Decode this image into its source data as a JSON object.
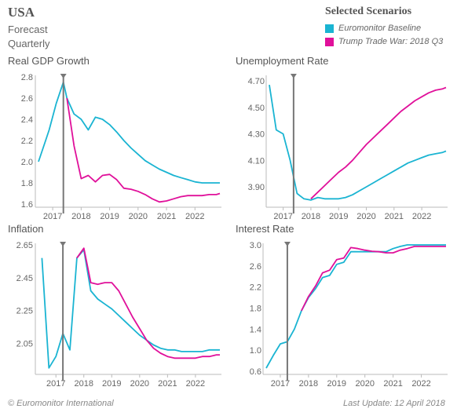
{
  "header": {
    "title": "USA",
    "subtitle1": "Forecast",
    "subtitle2": "Quarterly"
  },
  "legend": {
    "heading": "Selected Scenarios",
    "items": [
      {
        "label": "Euromonitor Baseline",
        "color": "#1ab4d2"
      },
      {
        "label": "Trump Trade War: 2018 Q3",
        "color": "#e0109a"
      }
    ]
  },
  "footer": {
    "copyright": "© Euromonitor International",
    "updated": "Last Update: 12 April 2018"
  },
  "colors": {
    "baseline": "#1ab4d2",
    "scenario": "#e0109a",
    "marker": "#777777",
    "axis": "#bbbbbb"
  },
  "chart_data": [
    {
      "type": "line",
      "title": "Real GDP Growth",
      "x_ticks": [
        "2017",
        "2018",
        "2019",
        "2020",
        "2021",
        "2022"
      ],
      "x_range": [
        2016.625,
        2023.0
      ],
      "ylim": [
        1.6,
        2.8
      ],
      "y_ticks": [
        "2.8",
        "2.6",
        "2.4",
        "2.2",
        "2.0",
        "1.8",
        "1.6"
      ],
      "marker_x": 2017.5,
      "series": [
        {
          "name": "Euromonitor Baseline",
          "x": [
            2016.625,
            2016.875,
            2017.0,
            2017.25,
            2017.5,
            2017.625,
            2017.875,
            2018.125,
            2018.375,
            2018.625,
            2018.875,
            2019.125,
            2019.375,
            2019.625,
            2019.875,
            2020.125,
            2020.375,
            2020.625,
            2020.875,
            2021.125,
            2021.375,
            2021.625,
            2021.875,
            2022.125,
            2022.375,
            2022.625,
            2022.875,
            2023.0
          ],
          "y": [
            2.0,
            2.2,
            2.3,
            2.55,
            2.75,
            2.6,
            2.45,
            2.4,
            2.3,
            2.42,
            2.4,
            2.35,
            2.28,
            2.2,
            2.13,
            2.07,
            2.01,
            1.97,
            1.93,
            1.9,
            1.87,
            1.85,
            1.83,
            1.81,
            1.8,
            1.8,
            1.8,
            1.8
          ]
        },
        {
          "name": "Trump Trade War: 2018 Q3",
          "x": [
            2017.625,
            2017.875,
            2018.125,
            2018.375,
            2018.625,
            2018.875,
            2019.125,
            2019.375,
            2019.625,
            2019.875,
            2020.125,
            2020.375,
            2020.625,
            2020.875,
            2021.125,
            2021.375,
            2021.625,
            2021.875,
            2022.125,
            2022.375,
            2022.625,
            2022.875,
            2023.0
          ],
          "y": [
            2.6,
            2.15,
            1.84,
            1.87,
            1.81,
            1.87,
            1.88,
            1.83,
            1.75,
            1.74,
            1.72,
            1.69,
            1.65,
            1.62,
            1.63,
            1.65,
            1.67,
            1.68,
            1.68,
            1.68,
            1.69,
            1.69,
            1.7
          ]
        }
      ]
    },
    {
      "type": "line",
      "title": "Unemployment Rate",
      "x_ticks": [
        "2017",
        "2018",
        "2019",
        "2020",
        "2021",
        "2022"
      ],
      "x_range": [
        2016.625,
        2023.0
      ],
      "ylim": [
        3.77,
        4.73
      ],
      "y_ticks": [
        "4.70",
        "4.50",
        "4.30",
        "4.10",
        "3.90"
      ],
      "marker_x": 2017.5,
      "series": [
        {
          "name": "Euromonitor Baseline",
          "x": [
            2016.625,
            2016.875,
            2017.125,
            2017.375,
            2017.625,
            2017.875,
            2018.125,
            2018.375,
            2018.625,
            2018.875,
            2019.125,
            2019.375,
            2019.625,
            2019.875,
            2020.125,
            2020.375,
            2020.625,
            2020.875,
            2021.125,
            2021.375,
            2021.625,
            2021.875,
            2022.125,
            2022.375,
            2022.625,
            2022.875,
            2023.0
          ],
          "y": [
            4.67,
            4.33,
            4.3,
            4.1,
            3.85,
            3.81,
            3.8,
            3.82,
            3.81,
            3.81,
            3.81,
            3.82,
            3.84,
            3.87,
            3.9,
            3.93,
            3.96,
            3.99,
            4.02,
            4.05,
            4.08,
            4.1,
            4.12,
            4.14,
            4.15,
            4.16,
            4.17
          ]
        },
        {
          "name": "Trump Trade War: 2018 Q3",
          "x": [
            2018.125,
            2018.375,
            2018.625,
            2018.875,
            2019.125,
            2019.375,
            2019.625,
            2019.875,
            2020.125,
            2020.375,
            2020.625,
            2020.875,
            2021.125,
            2021.375,
            2021.625,
            2021.875,
            2022.125,
            2022.375,
            2022.625,
            2022.875,
            2023.0
          ],
          "y": [
            3.81,
            3.86,
            3.91,
            3.96,
            4.01,
            4.05,
            4.1,
            4.16,
            4.22,
            4.27,
            4.32,
            4.37,
            4.42,
            4.47,
            4.51,
            4.55,
            4.58,
            4.61,
            4.63,
            4.64,
            4.65
          ]
        }
      ]
    },
    {
      "type": "line",
      "title": "Inflation",
      "x_ticks": [
        "2017",
        "2018",
        "2019",
        "2020",
        "2021",
        "2022"
      ],
      "x_range": [
        2016.5,
        2023.0
      ],
      "ylim": [
        1.88,
        2.65
      ],
      "y_ticks": [
        "2.65",
        "2.45",
        "2.25",
        "2.05"
      ],
      "marker_x": 2017.375,
      "series": [
        {
          "name": "Euromonitor Baseline",
          "x": [
            2016.625,
            2016.875,
            2017.125,
            2017.375,
            2017.625,
            2017.875,
            2018.125,
            2018.375,
            2018.625,
            2018.875,
            2019.125,
            2019.375,
            2019.625,
            2019.875,
            2020.125,
            2020.375,
            2020.625,
            2020.875,
            2021.125,
            2021.375,
            2021.625,
            2021.875,
            2022.125,
            2022.375,
            2022.625,
            2022.875,
            2023.0
          ],
          "y": [
            2.57,
            1.9,
            1.97,
            2.11,
            2.01,
            2.57,
            2.62,
            2.37,
            2.32,
            2.29,
            2.26,
            2.22,
            2.18,
            2.14,
            2.1,
            2.07,
            2.04,
            2.02,
            2.01,
            2.01,
            2.0,
            2.0,
            2.0,
            2.0,
            2.01,
            2.01,
            2.01
          ]
        },
        {
          "name": "Trump Trade War: 2018 Q3",
          "x": [
            2017.875,
            2018.125,
            2018.375,
            2018.625,
            2018.875,
            2019.125,
            2019.375,
            2019.625,
            2019.875,
            2020.125,
            2020.375,
            2020.625,
            2020.875,
            2021.125,
            2021.375,
            2021.625,
            2021.875,
            2022.125,
            2022.375,
            2022.625,
            2022.875,
            2023.0
          ],
          "y": [
            2.57,
            2.63,
            2.42,
            2.41,
            2.42,
            2.42,
            2.37,
            2.29,
            2.21,
            2.14,
            2.07,
            2.02,
            1.99,
            1.97,
            1.96,
            1.96,
            1.96,
            1.96,
            1.97,
            1.97,
            1.98,
            1.98
          ]
        }
      ]
    },
    {
      "type": "line",
      "title": "Interest Rate",
      "x_ticks": [
        "2017",
        "2018",
        "2019",
        "2020",
        "2021",
        "2022"
      ],
      "x_range": [
        2016.625,
        2023.0
      ],
      "ylim": [
        0.6,
        3.0
      ],
      "y_ticks": [
        "3.0",
        "2.6",
        "2.2",
        "1.8",
        "1.4",
        "1.0",
        "0.6"
      ],
      "marker_x": 2017.375,
      "series": [
        {
          "name": "Euromonitor Baseline",
          "x": [
            2016.625,
            2016.875,
            2017.125,
            2017.375,
            2017.625,
            2017.875,
            2018.125,
            2018.375,
            2018.625,
            2018.875,
            2019.125,
            2019.375,
            2019.625,
            2019.875,
            2020.125,
            2020.375,
            2020.625,
            2020.875,
            2021.125,
            2021.375,
            2021.625,
            2021.875,
            2022.125,
            2022.375,
            2022.625,
            2022.875,
            2023.0
          ],
          "y": [
            0.66,
            0.9,
            1.12,
            1.16,
            1.4,
            1.75,
            2.0,
            2.17,
            2.38,
            2.42,
            2.63,
            2.67,
            2.87,
            2.87,
            2.87,
            2.87,
            2.87,
            2.87,
            2.93,
            2.97,
            3.0,
            3.0,
            3.0,
            3.0,
            3.0,
            3.0,
            3.0
          ]
        },
        {
          "name": "Trump Trade War: 2018 Q3",
          "x": [
            2017.875,
            2018.125,
            2018.375,
            2018.625,
            2018.875,
            2019.125,
            2019.375,
            2019.625,
            2019.875,
            2020.125,
            2020.375,
            2020.625,
            2020.875,
            2021.125,
            2021.375,
            2021.625,
            2021.875,
            2022.125,
            2022.375,
            2022.625,
            2022.875,
            2023.0
          ],
          "y": [
            1.75,
            2.02,
            2.22,
            2.47,
            2.52,
            2.72,
            2.75,
            2.95,
            2.93,
            2.9,
            2.88,
            2.87,
            2.85,
            2.85,
            2.9,
            2.93,
            2.97,
            2.97,
            2.97,
            2.97,
            2.97,
            2.97
          ]
        }
      ]
    }
  ]
}
